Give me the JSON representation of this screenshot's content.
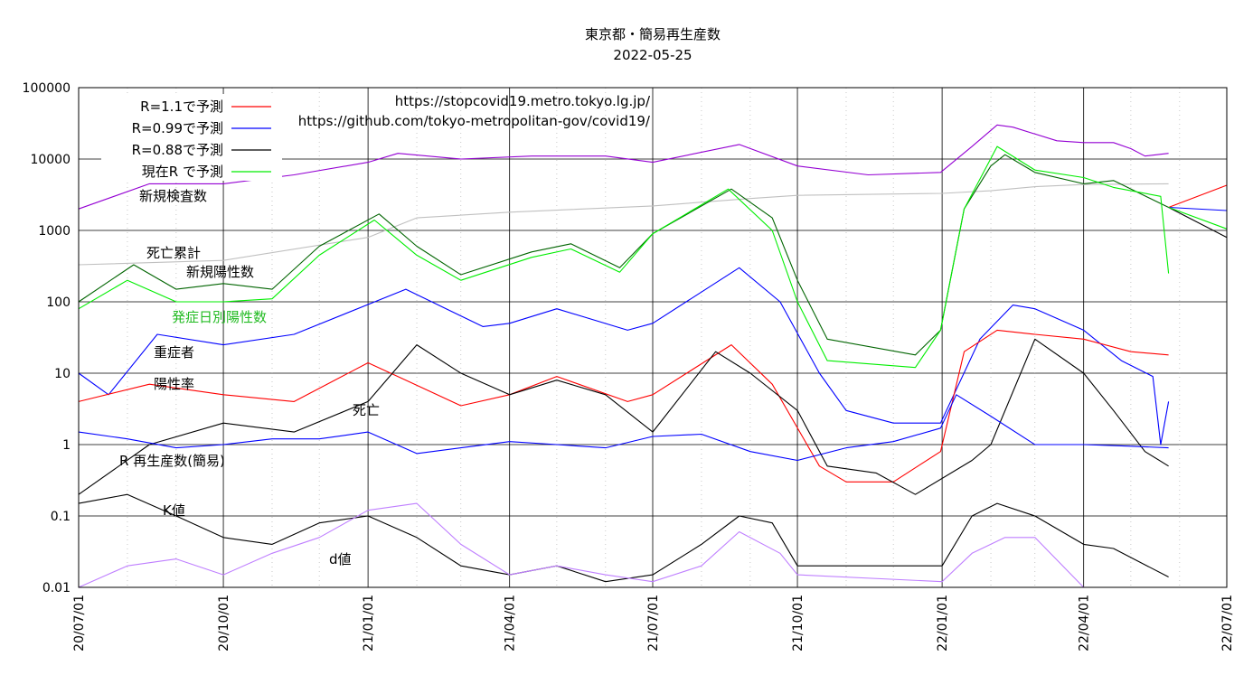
{
  "chart_data": {
    "type": "line",
    "title": "東京都・簡易再生産数",
    "subtitle": "2022-05-25",
    "yscale": "log",
    "ylim": [
      0.01,
      100000
    ],
    "y_ticks": [
      "100000",
      "10000",
      "1000",
      "100",
      "10",
      "1",
      "0.1",
      "0.01"
    ],
    "y_tick_values": [
      100000,
      10000,
      1000,
      100,
      10,
      1,
      0.1,
      0.01
    ],
    "xlim": [
      "2020-07-01",
      "2022-07-01"
    ],
    "x_ticks": [
      "20/07/01",
      "20/10/01",
      "21/01/01",
      "21/04/01",
      "21/07/01",
      "21/10/01",
      "22/01/01",
      "22/04/01",
      "22/07/01"
    ],
    "x_tick_dates": [
      "2020-07-01",
      "2020-10-01",
      "2021-01-01",
      "2021-04-01",
      "2021-07-01",
      "2021-10-01",
      "2022-01-01",
      "2022-04-01",
      "2022-07-01"
    ],
    "grid": true,
    "sources": [
      "https://stopcovid19.metro.tokyo.lg.jp/",
      "https://github.com/tokyo-metropolitan-gov/covid19/"
    ],
    "legend": [
      {
        "label": "R=1.1で予測",
        "color": "#ff0000"
      },
      {
        "label": "R=0.99で予測",
        "color": "#0000ff"
      },
      {
        "label": "R=0.88で予測",
        "color": "#000000"
      },
      {
        "label": "現在R で予測",
        "color": "#00ee00"
      }
    ],
    "annotations": [
      "新規検査数",
      "死亡累計",
      "新規陽性数",
      "発症日別陽性数",
      "重症者",
      "陽性率",
      "死亡",
      "R 再生産数(簡易)",
      "K値",
      "d値"
    ],
    "series": [
      {
        "name": "新規検査数",
        "color": "#9400d3",
        "x": [
          "2020-07-01",
          "2020-08-15",
          "2020-10-01",
          "2020-11-15",
          "2021-01-01",
          "2021-01-20",
          "2021-03-01",
          "2021-04-15",
          "2021-06-01",
          "2021-07-01",
          "2021-08-25",
          "2021-10-01",
          "2021-11-15",
          "2021-12-31",
          "2022-01-20",
          "2022-02-05",
          "2022-02-15",
          "2022-03-15",
          "2022-04-01",
          "2022-04-20",
          "2022-05-01",
          "2022-05-10",
          "2022-05-25"
        ],
        "y": [
          2000,
          4500,
          4500,
          6000,
          9000,
          12000,
          10000,
          11000,
          11000,
          9000,
          16000,
          8000,
          6000,
          6500,
          15000,
          30000,
          28000,
          18000,
          17000,
          17000,
          14000,
          11000,
          12000
        ]
      },
      {
        "name": "死亡累計",
        "color": "#c0c0c0",
        "x": [
          "2020-07-01",
          "2020-10-01",
          "2021-01-01",
          "2021-02-01",
          "2021-04-01",
          "2021-07-01",
          "2021-09-01",
          "2021-10-01",
          "2022-01-01",
          "2022-02-01",
          "2022-03-01",
          "2022-04-01",
          "2022-05-25"
        ],
        "y": [
          330,
          380,
          800,
          1500,
          1800,
          2200,
          2800,
          3100,
          3300,
          3600,
          4100,
          4400,
          4500
        ]
      },
      {
        "name": "新規陽性数",
        "color": "#006400",
        "x": [
          "2020-07-01",
          "2020-08-05",
          "2020-09-01",
          "2020-10-01",
          "2020-11-01",
          "2020-12-01",
          "2021-01-08",
          "2021-02-01",
          "2021-03-01",
          "2021-04-15",
          "2021-05-10",
          "2021-06-10",
          "2021-07-01",
          "2021-08-20",
          "2021-09-15",
          "2021-10-01",
          "2021-10-20",
          "2021-12-15",
          "2021-12-31",
          "2022-01-15",
          "2022-02-01",
          "2022-02-10",
          "2022-03-01",
          "2022-04-01",
          "2022-04-20",
          "2022-05-25"
        ],
        "y": [
          100,
          330,
          150,
          180,
          150,
          600,
          1700,
          600,
          240,
          500,
          650,
          300,
          900,
          3800,
          1500,
          200,
          30,
          18,
          40,
          2000,
          8000,
          11500,
          6500,
          4500,
          5000,
          2100
        ]
      },
      {
        "name": "発症日別陽性数",
        "color": "#00ee00",
        "x": [
          "2020-07-01",
          "2020-08-01",
          "2020-09-01",
          "2020-10-01",
          "2020-11-01",
          "2020-12-01",
          "2021-01-05",
          "2021-02-01",
          "2021-03-01",
          "2021-04-15",
          "2021-05-10",
          "2021-06-10",
          "2021-07-01",
          "2021-08-18",
          "2021-09-15",
          "2021-10-01",
          "2021-10-20",
          "2021-12-15",
          "2021-12-31",
          "2022-01-15",
          "2022-02-05",
          "2022-03-01",
          "2022-04-01",
          "2022-04-20",
          "2022-05-20",
          "2022-05-25"
        ],
        "y": [
          80,
          200,
          100,
          100,
          110,
          450,
          1400,
          450,
          200,
          420,
          550,
          260,
          900,
          3800,
          1000,
          100,
          15,
          12,
          40,
          2000,
          15000,
          7000,
          5500,
          4000,
          3000,
          250
        ]
      },
      {
        "name": "重症者",
        "color": "#0000ff",
        "x": [
          "2020-07-01",
          "2020-07-20",
          "2020-08-20",
          "2020-10-01",
          "2020-11-15",
          "2021-01-25",
          "2021-03-15",
          "2021-04-01",
          "2021-05-01",
          "2021-06-15",
          "2021-07-01",
          "2021-08-25",
          "2021-09-20",
          "2021-10-15",
          "2021-11-01",
          "2021-12-01",
          "2021-12-31",
          "2022-01-25",
          "2022-02-15",
          "2022-03-01",
          "2022-04-01",
          "2022-04-25",
          "2022-05-15",
          "2022-05-20",
          "2022-05-25"
        ],
        "y": [
          10,
          5,
          35,
          25,
          35,
          150,
          45,
          50,
          80,
          40,
          50,
          300,
          100,
          10,
          3,
          2,
          2,
          30,
          90,
          80,
          40,
          15,
          9,
          1,
          4
        ]
      },
      {
        "name": "陽性率",
        "color": "#ff0000",
        "x": [
          "2020-07-01",
          "2020-08-15",
          "2020-10-01",
          "2020-11-15",
          "2021-01-01",
          "2021-01-25",
          "2021-03-01",
          "2021-04-01",
          "2021-05-01",
          "2021-06-15",
          "2021-07-01",
          "2021-08-20",
          "2021-09-15",
          "2021-10-15",
          "2021-11-01",
          "2021-12-01",
          "2021-12-31",
          "2022-01-15",
          "2022-02-05",
          "2022-03-01",
          "2022-04-01",
          "2022-05-01",
          "2022-05-25"
        ],
        "y": [
          4,
          7,
          5,
          4,
          14,
          8,
          3.5,
          5,
          9,
          4,
          5,
          25,
          7,
          0.5,
          0.3,
          0.3,
          0.8,
          20,
          40,
          35,
          30,
          20,
          18
        ]
      },
      {
        "name": "死亡",
        "color": "#000000",
        "x": [
          "2020-07-01",
          "2020-08-15",
          "2020-10-01",
          "2020-11-15",
          "2021-01-01",
          "2021-02-01",
          "2021-03-01",
          "2021-04-01",
          "2021-05-01",
          "2021-06-01",
          "2021-07-01",
          "2021-08-10",
          "2021-09-01",
          "2021-10-01",
          "2021-10-20",
          "2021-11-20",
          "2021-12-15",
          "2022-01-20",
          "2022-02-01",
          "2022-03-01",
          "2022-04-01",
          "2022-04-20",
          "2022-05-10",
          "2022-05-25"
        ],
        "y": [
          0.2,
          1,
          2,
          1.5,
          4,
          25,
          10,
          5,
          8,
          5,
          1.5,
          20,
          10,
          3,
          0.5,
          0.4,
          0.2,
          0.6,
          1,
          30,
          10,
          3,
          0.8,
          0.5
        ]
      },
      {
        "name": "R 再生産数(簡易)",
        "color": "#0000ff",
        "x": [
          "2020-07-01",
          "2020-08-01",
          "2020-09-01",
          "2020-10-01",
          "2020-11-01",
          "2020-12-01",
          "2021-01-01",
          "2021-02-01",
          "2021-03-01",
          "2021-04-01",
          "2021-05-01",
          "2021-06-01",
          "2021-07-01",
          "2021-08-01",
          "2021-09-01",
          "2021-10-01",
          "2021-11-01",
          "2021-12-01",
          "2021-12-31",
          "2022-01-10",
          "2022-02-01",
          "2022-03-01",
          "2022-04-01",
          "2022-05-01",
          "2022-05-25"
        ],
        "y": [
          1.5,
          1.2,
          0.9,
          1.0,
          1.2,
          1.2,
          1.5,
          0.75,
          0.9,
          1.1,
          1.0,
          0.9,
          1.3,
          1.4,
          0.8,
          0.6,
          0.9,
          1.1,
          1.7,
          5,
          2.5,
          1.0,
          1.0,
          0.95,
          0.9
        ]
      },
      {
        "name": "K値",
        "color": "#000000",
        "x": [
          "2020-07-01",
          "2020-08-01",
          "2020-09-01",
          "2020-10-01",
          "2020-11-01",
          "2020-12-01",
          "2021-01-01",
          "2021-02-01",
          "2021-03-01",
          "2021-04-01",
          "2021-05-01",
          "2021-06-01",
          "2021-07-01",
          "2021-08-01",
          "2021-08-25",
          "2021-09-15",
          "2021-10-01",
          "2022-01-01",
          "2022-01-20",
          "2022-02-05",
          "2022-03-01",
          "2022-04-01",
          "2022-04-20",
          "2022-05-25"
        ],
        "y": [
          0.15,
          0.2,
          0.1,
          0.05,
          0.04,
          0.08,
          0.1,
          0.05,
          0.02,
          0.015,
          0.02,
          0.012,
          0.015,
          0.04,
          0.1,
          0.08,
          0.02,
          0.02,
          0.1,
          0.15,
          0.1,
          0.04,
          0.035,
          0.014
        ]
      },
      {
        "name": "d値",
        "color": "#bf7fff",
        "x": [
          "2020-07-01",
          "2020-08-01",
          "2020-09-01",
          "2020-10-01",
          "2020-11-01",
          "2020-12-01",
          "2021-01-01",
          "2021-02-01",
          "2021-03-01",
          "2021-04-01",
          "2021-05-01",
          "2021-06-01",
          "2021-07-01",
          "2021-08-01",
          "2021-08-25",
          "2021-09-20",
          "2021-10-01",
          "2022-01-01",
          "2022-01-20",
          "2022-02-10",
          "2022-03-01",
          "2022-04-01"
        ],
        "y": [
          0.01,
          0.02,
          0.025,
          0.015,
          0.03,
          0.05,
          0.12,
          0.15,
          0.04,
          0.015,
          0.02,
          0.015,
          0.012,
          0.02,
          0.06,
          0.03,
          0.015,
          0.012,
          0.03,
          0.05,
          0.05,
          0.01
        ]
      },
      {
        "name": "R=1.1で予測",
        "color": "#ff0000",
        "x": [
          "2022-05-25",
          "2022-07-01"
        ],
        "y": [
          2100,
          4300
        ]
      },
      {
        "name": "R=0.99で予測",
        "color": "#0000ff",
        "x": [
          "2022-05-25",
          "2022-07-01"
        ],
        "y": [
          2100,
          1900
        ]
      },
      {
        "name": "R=0.88で予測",
        "color": "#000000",
        "x": [
          "2022-05-25",
          "2022-07-01"
        ],
        "y": [
          2100,
          800
        ]
      },
      {
        "name": "現在R で予測",
        "color": "#00ee00",
        "x": [
          "2022-05-25",
          "2022-07-01"
        ],
        "y": [
          2100,
          1050
        ]
      }
    ]
  }
}
